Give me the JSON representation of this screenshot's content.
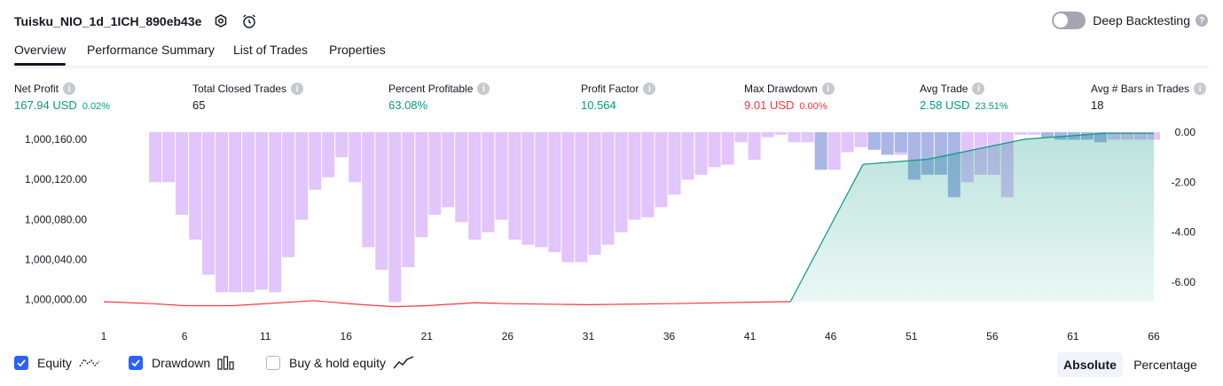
{
  "header": {
    "title": "Tuisku_NIO_1d_1ICH_890eb43e",
    "deep_backtesting_label": "Deep Backtesting",
    "deep_backtesting_enabled": false
  },
  "tabs": [
    {
      "label": "Overview",
      "active": true
    },
    {
      "label": "Performance Summary",
      "active": false
    },
    {
      "label": "List of Trades",
      "active": false
    },
    {
      "label": "Properties",
      "active": false
    }
  ],
  "stats": [
    {
      "label": "Net Profit",
      "value": "167.94 USD",
      "pct": "0.02%",
      "color": "#089981"
    },
    {
      "label": "Total Closed Trades",
      "value": "65",
      "pct": "",
      "color": "#131722"
    },
    {
      "label": "Percent Profitable",
      "value": "63.08%",
      "pct": "",
      "color": "#089981"
    },
    {
      "label": "Profit Factor",
      "value": "10.564",
      "pct": "",
      "color": "#089981"
    },
    {
      "label": "Max Drawdown",
      "value": "9.01 USD",
      "pct": "0.00%",
      "color": "#f23645"
    },
    {
      "label": "Avg Trade",
      "value": "2.58 USD",
      "pct": "23.51%",
      "color": "#089981"
    },
    {
      "label": "Avg # Bars in Trades",
      "value": "18",
      "pct": "",
      "color": "#131722"
    }
  ],
  "chart_data": {
    "type": "bar",
    "left_axis": {
      "ticks": [
        "1,000,160.00",
        "1,000,120.00",
        "1,000,080.00",
        "1,000,040.00",
        "1,000,000.00"
      ],
      "values": [
        1000160,
        1000120,
        1000080,
        1000040,
        1000000
      ]
    },
    "right_axis": {
      "ticks": [
        "0.00",
        "-2.00",
        "-4.00",
        "-6.00"
      ],
      "values": [
        0,
        -2,
        -4,
        -6
      ]
    },
    "x_ticks": [
      "1",
      "6",
      "11",
      "16",
      "21",
      "26",
      "31",
      "36",
      "41",
      "46",
      "51",
      "56",
      "61",
      "66"
    ],
    "x_range": [
      1,
      66
    ],
    "left_range": [
      999990,
      1000167
    ],
    "right_range": [
      -7.1,
      0
    ],
    "drawdown_ticks": [
      0,
      0,
      0,
      0,
      -2.0,
      -2.0,
      -3.3,
      -4.3,
      -5.7,
      -6.4,
      -6.4,
      -6.4,
      -6.3,
      -6.4,
      -5.0,
      -3.5,
      -2.3,
      -1.8,
      -1.0,
      -2.0,
      -4.6,
      -5.5,
      -6.8,
      -5.4,
      -4.2,
      -3.3,
      -3.0,
      -3.6,
      -4.3,
      -4.0,
      -3.5,
      -4.3,
      -4.5,
      -4.6,
      -4.8,
      -5.2,
      -5.2,
      -4.9,
      -4.5,
      -4.0,
      -3.5,
      -3.4,
      -3.0,
      -2.5,
      -1.9,
      -1.7,
      -1.4,
      -1.3,
      -0.4,
      -1.1,
      -0.2,
      -0.1,
      -0.4,
      -0.4,
      -1.2,
      -1.5,
      -0.8,
      -0.6,
      -0.7,
      -0.6,
      -0.9,
      -1.1,
      -0.7,
      -1.0,
      -1.0,
      -2.0,
      -1.7,
      -1.7,
      -2.6,
      -0.1,
      -0.1,
      -0.1,
      -0.1,
      -0.1,
      -0.1,
      -0.2,
      -0.3,
      -0.3,
      -0.3,
      -0.3
    ],
    "drawdown_blue_ticks": [
      0,
      0,
      0,
      0,
      0,
      0,
      0,
      0,
      0,
      0,
      0,
      0,
      0,
      0,
      0,
      0,
      0,
      0,
      0,
      0,
      0,
      0,
      0,
      0,
      0,
      0,
      0,
      0,
      0,
      0,
      0,
      0,
      0,
      0,
      0,
      0,
      0,
      0,
      0,
      0,
      0,
      0,
      0,
      0,
      0,
      0,
      0,
      0,
      0,
      0,
      0,
      0,
      0,
      0,
      -1.5,
      0,
      0,
      0,
      -0.7,
      -0.9,
      -0.8,
      -1.9,
      -1.7,
      -1.7,
      -2.6,
      0,
      0,
      0,
      0,
      0,
      0,
      -0.2,
      -0.3,
      -0.3,
      -0.3,
      -0.4,
      0,
      0,
      0,
      0
    ],
    "equity": [
      [
        1,
        999998
      ],
      [
        4,
        999996
      ],
      [
        6,
        999994
      ],
      [
        9,
        999994
      ],
      [
        14,
        999999
      ],
      [
        17,
        999995
      ],
      [
        19,
        999993
      ],
      [
        21,
        999994
      ],
      [
        24,
        999997
      ],
      [
        26,
        999996
      ],
      [
        31,
        999995
      ],
      [
        36,
        999996
      ],
      [
        43,
        999998
      ],
      [
        43.5,
        999998
      ],
      [
        48,
        1000135
      ],
      [
        52,
        1000140
      ],
      [
        58,
        1000160
      ],
      [
        63,
        1000166
      ],
      [
        66,
        1000166
      ]
    ]
  },
  "legend": [
    {
      "label": "Equity",
      "checked": true,
      "icon": "equity-wave-icon"
    },
    {
      "label": "Drawdown",
      "checked": true,
      "icon": "drawdown-bars-icon"
    },
    {
      "label": "Buy & hold equity",
      "checked": false,
      "icon": "buy-hold-line-icon"
    }
  ],
  "view_toggle": {
    "absolute": "Absolute",
    "percentage": "Percentage",
    "selected": "Absolute"
  }
}
